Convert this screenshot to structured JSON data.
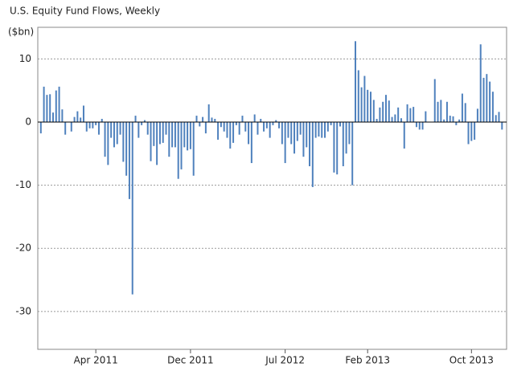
{
  "chart_data": {
    "type": "bar",
    "title": "U.S. Equity Fund Flows, Weekly",
    "y_label": "($bn)",
    "categories": [
      null,
      null,
      null,
      null,
      null,
      null,
      null,
      null,
      null,
      null,
      null,
      null,
      null,
      null,
      null,
      null,
      null,
      null,
      "Apr 2011",
      null,
      null,
      null,
      null,
      null,
      null,
      null,
      null,
      null,
      null,
      null,
      null,
      null,
      null,
      null,
      null,
      null,
      null,
      null,
      null,
      null,
      null,
      null,
      null,
      null,
      null,
      null,
      null,
      null,
      null,
      "Dec 2011",
      null,
      null,
      null,
      null,
      null,
      null,
      null,
      null,
      null,
      null,
      null,
      null,
      null,
      null,
      null,
      null,
      null,
      null,
      null,
      null,
      null,
      null,
      null,
      null,
      null,
      null,
      null,
      null,
      null,
      null,
      "Jul 2012",
      null,
      null,
      null,
      null,
      null,
      null,
      null,
      null,
      null,
      null,
      null,
      null,
      null,
      null,
      null,
      null,
      null,
      null,
      null,
      null,
      null,
      null,
      null,
      null,
      null,
      null,
      "Feb 2013",
      null,
      null,
      null,
      null,
      null,
      null,
      null,
      null,
      null,
      null,
      null,
      null,
      null,
      null,
      null,
      null,
      null,
      null,
      null,
      null,
      null,
      null,
      null,
      null,
      null,
      null,
      null,
      null,
      null,
      null,
      null,
      null,
      null,
      "Oct 2013",
      null,
      null,
      null,
      null,
      null,
      null,
      null,
      null,
      null,
      null
    ],
    "values": [
      -1.8,
      5.6,
      4.3,
      4.4,
      1.5,
      5.0,
      5.6,
      2.0,
      -2.0,
      0,
      -1.5,
      0.8,
      1.7,
      0.7,
      2.6,
      -1.5,
      -1.0,
      -1.0,
      -0.5,
      -2.0,
      0.5,
      -5.5,
      -6.8,
      -2.5,
      -4.0,
      -3.5,
      -2.0,
      -6.3,
      -8.5,
      -12.2,
      -27.3,
      1.0,
      -2.5,
      -0.5,
      0.3,
      -2.0,
      -6.2,
      -3.8,
      -6.8,
      -3.5,
      -3.3,
      -2.0,
      -5.5,
      -4.0,
      -4.0,
      -9.0,
      -7.5,
      -4.0,
      -4.5,
      -4.3,
      -8.5,
      1.0,
      -0.7,
      0.8,
      -1.8,
      2.8,
      0.7,
      0.5,
      -2.8,
      -0.8,
      -1.5,
      -2.5,
      -4.2,
      -3.3,
      -0.5,
      -2.0,
      1.0,
      -1.5,
      -3.5,
      -6.5,
      1.2,
      -2.0,
      0.5,
      -1.5,
      -1.0,
      -2.5,
      -0.5,
      0.3,
      -1.0,
      -3.5,
      -6.5,
      -2.5,
      -3.5,
      -5.0,
      -3.0,
      -2.0,
      -5.5,
      -4.0,
      -7.0,
      -10.3,
      -2.5,
      -2.3,
      -2.5,
      -2.5,
      -1.5,
      -0.5,
      -8.0,
      -8.3,
      -0.7,
      -7.0,
      -5.0,
      -3.5,
      -10.0,
      12.8,
      8.2,
      5.5,
      7.3,
      5.1,
      4.8,
      3.5,
      0.5,
      2.3,
      3.2,
      4.3,
      3.4,
      0.8,
      1.2,
      2.3,
      0.6,
      -4.2,
      2.8,
      2.2,
      2.4,
      -0.8,
      -1.2,
      -1.2,
      1.7,
      0,
      0,
      6.8,
      3.2,
      3.5,
      0.4,
      3.2,
      1.0,
      0.9,
      -0.5,
      0.4,
      4.5,
      3.0,
      -3.5,
      -3.0,
      -2.8,
      2.1,
      12.3,
      7.0,
      7.6,
      6.4,
      4.8,
      1.1,
      1.6,
      -1.2
    ],
    "color": "#4f81bd",
    "ylim": [
      -36,
      15
    ],
    "yticks": [
      -30,
      -20,
      -10,
      0,
      10
    ],
    "grid": true
  }
}
